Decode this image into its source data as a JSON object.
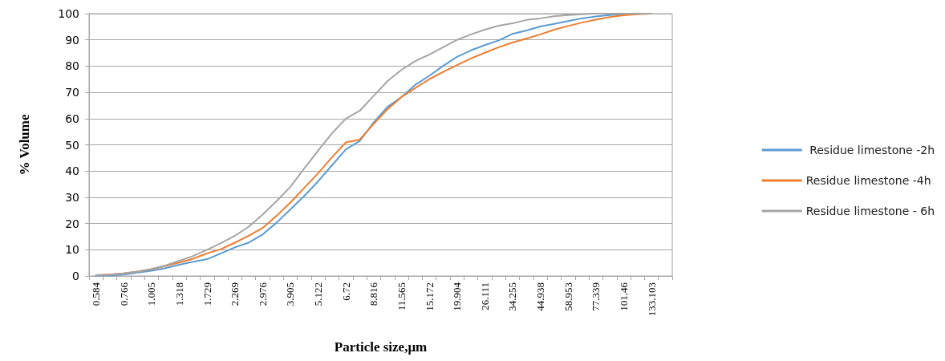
{
  "chart_data": {
    "type": "line",
    "xlabel": "Particle size,μm",
    "ylabel": "% Volume",
    "categories": [
      "0.584",
      null,
      "0.766",
      null,
      "1.005",
      null,
      "1.318",
      null,
      "1.729",
      null,
      "2.269",
      null,
      "2.976",
      null,
      "3.905",
      null,
      "5.122",
      null,
      "6.72",
      null,
      "8.816",
      null,
      "11.565",
      null,
      "15.172",
      null,
      "19.904",
      null,
      "26.111",
      null,
      "34.255",
      null,
      "44.938",
      null,
      "58.953",
      null,
      "77.339",
      null,
      "101.46",
      null,
      "133.103",
      null
    ],
    "series": [
      {
        "name": " Residue limestone -2h",
        "color": "#5b9bd5",
        "values": [
          0,
          0.2,
          0.5,
          1.3,
          2,
          3,
          4.3,
          5.4,
          6.4,
          8.6,
          10.9,
          12.7,
          15.8,
          20.3,
          25.4,
          30.5,
          36.1,
          42.2,
          48.3,
          51.5,
          58.5,
          64.5,
          68.2,
          72.9,
          76.3,
          80.1,
          83.5,
          86,
          88,
          89.8,
          92.3,
          93.6,
          95.1,
          96.1,
          97.2,
          98.2,
          98.9,
          99.5,
          99.8,
          100,
          100,
          null
        ]
      },
      {
        "name": "Residue limestone -4h",
        "color": "#ed7d31",
        "values": [
          0.3,
          0.5,
          1,
          1.7,
          2.5,
          3.8,
          5.1,
          6.6,
          8.6,
          10.2,
          12.7,
          15.3,
          18.3,
          22.9,
          28,
          33.6,
          39.2,
          45.3,
          50.9,
          52,
          58,
          63.6,
          68.2,
          71.7,
          75,
          77.8,
          80.4,
          82.9,
          85.1,
          87.2,
          89,
          90.5,
          92.1,
          93.9,
          95.3,
          96.6,
          97.7,
          98.7,
          99.4,
          99.8,
          100,
          null
        ]
      },
      {
        "name": "Residue limestone - 6h",
        "color": "#a5a5a5",
        "values": [
          0.2,
          0.5,
          1,
          1.7,
          2.7,
          4,
          5.8,
          7.6,
          10,
          12.5,
          15.3,
          18.8,
          23.4,
          28.5,
          34,
          41,
          47.8,
          54.4,
          60,
          63,
          68.7,
          74.3,
          78.6,
          81.9,
          84.4,
          87.2,
          90,
          92.1,
          93.9,
          95.4,
          96.3,
          97.6,
          98.2,
          99,
          99.5,
          99.8,
          100,
          100,
          100,
          100,
          100,
          null
        ]
      }
    ],
    "ylim": [
      0,
      100
    ],
    "yticks": [
      0,
      10,
      20,
      30,
      40,
      50,
      60,
      70,
      80,
      90,
      100
    ],
    "grid": "y",
    "legend": "right",
    "marker": "none",
    "line_style": "solid"
  }
}
